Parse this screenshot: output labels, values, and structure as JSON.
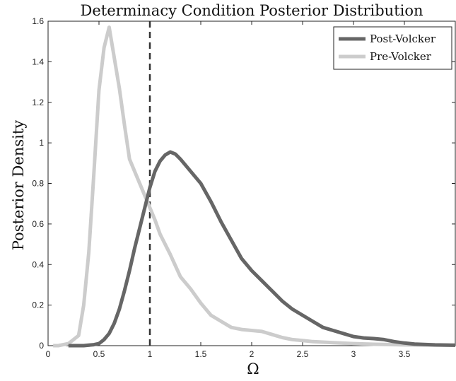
{
  "chart_data": {
    "type": "line",
    "title": "Determinacy Condition Posterior Distribution",
    "xlabel": "Ω",
    "ylabel": "Posterior Density",
    "xlim": [
      0,
      4
    ],
    "ylim": [
      0,
      1.6
    ],
    "xticks": [
      "0",
      "0.5",
      "1",
      "1.5",
      "2",
      "2.5",
      "3",
      "3.5"
    ],
    "yticks": [
      "0",
      "0.2",
      "0.4",
      "0.6",
      "0.8",
      "1",
      "1.2",
      "1.4",
      "1.6"
    ],
    "xtick_values": [
      0,
      0.5,
      1,
      1.5,
      2,
      2.5,
      3,
      3.5
    ],
    "ytick_values": [
      0,
      0.2,
      0.4,
      0.6,
      0.8,
      1.0,
      1.2,
      1.4,
      1.6
    ],
    "grid": false,
    "legend_position": "top-right",
    "reference_line": {
      "x": 1,
      "style": "dashed"
    },
    "series": [
      {
        "name": "Post-Volcker",
        "color": "#666666",
        "x": [
          0.2,
          0.35,
          0.45,
          0.5,
          0.55,
          0.6,
          0.65,
          0.7,
          0.75,
          0.8,
          0.85,
          0.9,
          0.95,
          1.0,
          1.05,
          1.1,
          1.15,
          1.2,
          1.25,
          1.3,
          1.35,
          1.4,
          1.5,
          1.6,
          1.7,
          1.8,
          1.9,
          2.0,
          2.1,
          2.2,
          2.3,
          2.4,
          2.5,
          2.6,
          2.7,
          2.8,
          2.9,
          3.0,
          3.1,
          3.2,
          3.3,
          3.4,
          3.5,
          3.6,
          3.8,
          4.0
        ],
        "values": [
          0.0,
          0.0,
          0.005,
          0.01,
          0.03,
          0.06,
          0.11,
          0.18,
          0.27,
          0.37,
          0.48,
          0.58,
          0.68,
          0.78,
          0.86,
          0.91,
          0.94,
          0.955,
          0.945,
          0.92,
          0.89,
          0.86,
          0.8,
          0.71,
          0.61,
          0.52,
          0.43,
          0.37,
          0.32,
          0.27,
          0.22,
          0.18,
          0.15,
          0.12,
          0.09,
          0.075,
          0.06,
          0.045,
          0.038,
          0.035,
          0.03,
          0.02,
          0.013,
          0.008,
          0.004,
          0.002
        ]
      },
      {
        "name": "Pre-Volcker",
        "color": "#cccccc",
        "x": [
          0.05,
          0.1,
          0.2,
          0.3,
          0.35,
          0.4,
          0.45,
          0.5,
          0.55,
          0.6,
          0.65,
          0.7,
          0.75,
          0.8,
          0.9,
          1.0,
          1.05,
          1.1,
          1.2,
          1.3,
          1.4,
          1.5,
          1.6,
          1.7,
          1.8,
          1.9,
          2.0,
          2.1,
          2.2,
          2.3,
          2.4,
          2.5,
          2.6,
          2.8,
          3.0,
          3.2,
          3.5,
          4.0
        ],
        "values": [
          0.0,
          0.0,
          0.01,
          0.05,
          0.2,
          0.46,
          0.85,
          1.26,
          1.47,
          1.57,
          1.42,
          1.27,
          1.09,
          0.92,
          0.8,
          0.68,
          0.62,
          0.55,
          0.45,
          0.34,
          0.28,
          0.21,
          0.15,
          0.12,
          0.09,
          0.08,
          0.075,
          0.07,
          0.055,
          0.04,
          0.03,
          0.025,
          0.02,
          0.015,
          0.01,
          0.007,
          0.004,
          0.002
        ]
      }
    ]
  }
}
